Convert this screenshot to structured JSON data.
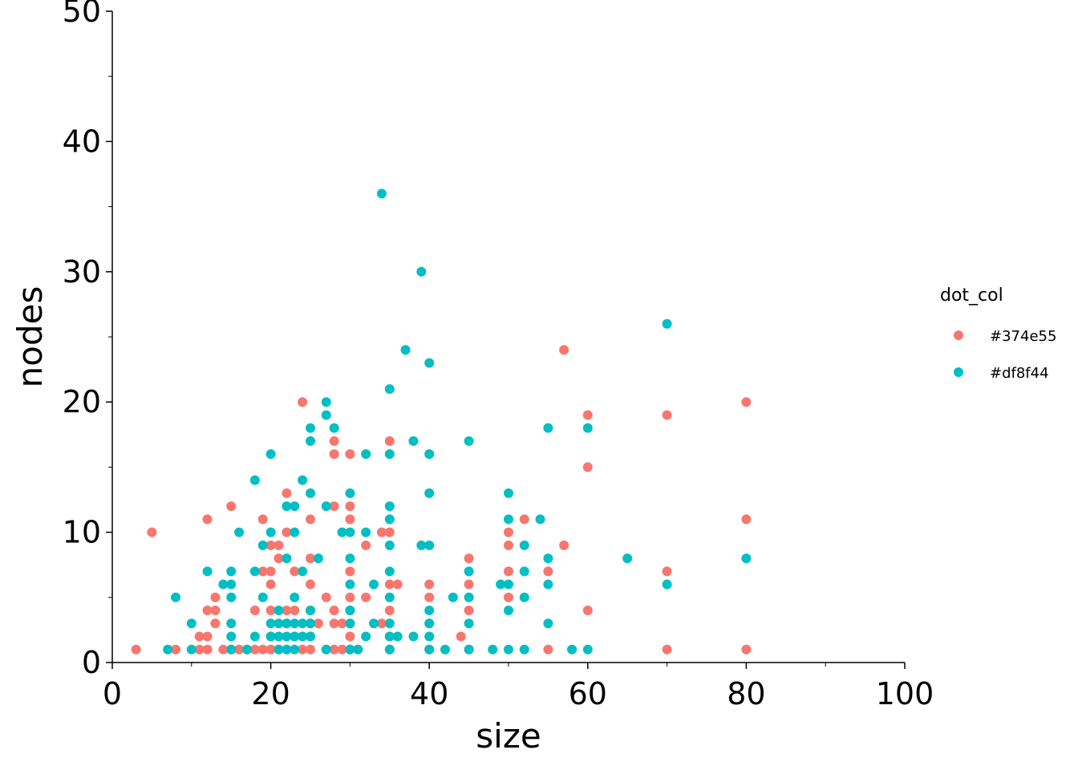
{
  "chart_data": {
    "type": "scatter",
    "xlabel": "size",
    "ylabel": "nodes",
    "xlim": [
      0,
      100
    ],
    "ylim": [
      0,
      50
    ],
    "x_ticks": [
      "0",
      "20",
      "40",
      "60",
      "80",
      "100"
    ],
    "y_ticks": [
      "0",
      "10",
      "20",
      "30",
      "40",
      "50"
    ],
    "grid": false,
    "legend": {
      "title": "dot_col",
      "placement": "right",
      "entries": [
        "#374e55",
        "#df8f44"
      ]
    },
    "series": [
      {
        "name": "#374e55",
        "color": "#f8766d",
        "points": [
          [
            3,
            1
          ],
          [
            5,
            10
          ],
          [
            8,
            1
          ],
          [
            11,
            1
          ],
          [
            11,
            2
          ],
          [
            12,
            1
          ],
          [
            12,
            2
          ],
          [
            12,
            4
          ],
          [
            12,
            11
          ],
          [
            13,
            3
          ],
          [
            13,
            4
          ],
          [
            13,
            5
          ],
          [
            14,
            1
          ],
          [
            15,
            1
          ],
          [
            15,
            12
          ],
          [
            16,
            1
          ],
          [
            17,
            1
          ],
          [
            18,
            1
          ],
          [
            18,
            4
          ],
          [
            19,
            1
          ],
          [
            19,
            7
          ],
          [
            19,
            11
          ],
          [
            20,
            1
          ],
          [
            20,
            2
          ],
          [
            20,
            4
          ],
          [
            20,
            6
          ],
          [
            20,
            7
          ],
          [
            20,
            9
          ],
          [
            21,
            1
          ],
          [
            21,
            8
          ],
          [
            21,
            9
          ],
          [
            22,
            1
          ],
          [
            22,
            3
          ],
          [
            22,
            4
          ],
          [
            22,
            10
          ],
          [
            22,
            13
          ],
          [
            23,
            2
          ],
          [
            23,
            4
          ],
          [
            23,
            7
          ],
          [
            24,
            1
          ],
          [
            24,
            20
          ],
          [
            25,
            1
          ],
          [
            25,
            2
          ],
          [
            25,
            3
          ],
          [
            25,
            4
          ],
          [
            25,
            6
          ],
          [
            25,
            8
          ],
          [
            25,
            11
          ],
          [
            26,
            3
          ],
          [
            27,
            1
          ],
          [
            27,
            5
          ],
          [
            28,
            1
          ],
          [
            28,
            3
          ],
          [
            28,
            4
          ],
          [
            28,
            12
          ],
          [
            28,
            16
          ],
          [
            28,
            17
          ],
          [
            29,
            1
          ],
          [
            29,
            3
          ],
          [
            30,
            1
          ],
          [
            30,
            2
          ],
          [
            30,
            3
          ],
          [
            30,
            4
          ],
          [
            30,
            5
          ],
          [
            30,
            7
          ],
          [
            30,
            11
          ],
          [
            30,
            12
          ],
          [
            30,
            16
          ],
          [
            31,
            1
          ],
          [
            32,
            5
          ],
          [
            32,
            9
          ],
          [
            34,
            3
          ],
          [
            34,
            10
          ],
          [
            35,
            1
          ],
          [
            35,
            2
          ],
          [
            35,
            4
          ],
          [
            35,
            6
          ],
          [
            35,
            10
          ],
          [
            35,
            17
          ],
          [
            36,
            6
          ],
          [
            40,
            1
          ],
          [
            40,
            3
          ],
          [
            40,
            5
          ],
          [
            40,
            6
          ],
          [
            44,
            2
          ],
          [
            45,
            1
          ],
          [
            45,
            4
          ],
          [
            45,
            6
          ],
          [
            45,
            8
          ],
          [
            50,
            5
          ],
          [
            50,
            7
          ],
          [
            50,
            9
          ],
          [
            50,
            10
          ],
          [
            52,
            11
          ],
          [
            55,
            1
          ],
          [
            55,
            7
          ],
          [
            57,
            9
          ],
          [
            57,
            24
          ],
          [
            60,
            4
          ],
          [
            60,
            15
          ],
          [
            60,
            19
          ],
          [
            70,
            1
          ],
          [
            70,
            7
          ],
          [
            70,
            19
          ],
          [
            80,
            1
          ],
          [
            80,
            11
          ],
          [
            80,
            20
          ]
        ]
      },
      {
        "name": "#df8f44",
        "color": "#00bfc4",
        "points": [
          [
            7,
            1
          ],
          [
            8,
            5
          ],
          [
            10,
            1
          ],
          [
            10,
            3
          ],
          [
            12,
            7
          ],
          [
            14,
            6
          ],
          [
            15,
            1
          ],
          [
            15,
            2
          ],
          [
            15,
            3
          ],
          [
            15,
            5
          ],
          [
            15,
            6
          ],
          [
            15,
            7
          ],
          [
            16,
            10
          ],
          [
            17,
            1
          ],
          [
            18,
            2
          ],
          [
            18,
            7
          ],
          [
            18,
            14
          ],
          [
            19,
            5
          ],
          [
            19,
            9
          ],
          [
            20,
            2
          ],
          [
            20,
            3
          ],
          [
            20,
            10
          ],
          [
            20,
            16
          ],
          [
            21,
            1
          ],
          [
            21,
            2
          ],
          [
            21,
            3
          ],
          [
            21,
            4
          ],
          [
            22,
            1
          ],
          [
            22,
            2
          ],
          [
            22,
            3
          ],
          [
            22,
            8
          ],
          [
            22,
            12
          ],
          [
            23,
            1
          ],
          [
            23,
            2
          ],
          [
            23,
            3
          ],
          [
            23,
            5
          ],
          [
            23,
            10
          ],
          [
            23,
            12
          ],
          [
            24,
            2
          ],
          [
            24,
            3
          ],
          [
            24,
            7
          ],
          [
            24,
            14
          ],
          [
            25,
            2
          ],
          [
            25,
            3
          ],
          [
            25,
            4
          ],
          [
            25,
            13
          ],
          [
            25,
            17
          ],
          [
            25,
            18
          ],
          [
            26,
            8
          ],
          [
            27,
            1
          ],
          [
            27,
            12
          ],
          [
            27,
            19
          ],
          [
            27,
            20
          ],
          [
            28,
            18
          ],
          [
            29,
            10
          ],
          [
            30,
            1
          ],
          [
            30,
            3
          ],
          [
            30,
            4
          ],
          [
            30,
            6
          ],
          [
            30,
            8
          ],
          [
            30,
            10
          ],
          [
            30,
            13
          ],
          [
            31,
            1
          ],
          [
            32,
            2
          ],
          [
            32,
            10
          ],
          [
            32,
            16
          ],
          [
            33,
            3
          ],
          [
            33,
            6
          ],
          [
            34,
            36
          ],
          [
            35,
            1
          ],
          [
            35,
            2
          ],
          [
            35,
            3
          ],
          [
            35,
            5
          ],
          [
            35,
            7
          ],
          [
            35,
            9
          ],
          [
            35,
            11
          ],
          [
            35,
            12
          ],
          [
            35,
            16
          ],
          [
            35,
            21
          ],
          [
            36,
            2
          ],
          [
            37,
            24
          ],
          [
            38,
            2
          ],
          [
            38,
            17
          ],
          [
            39,
            9
          ],
          [
            39,
            30
          ],
          [
            40,
            1
          ],
          [
            40,
            2
          ],
          [
            40,
            3
          ],
          [
            40,
            4
          ],
          [
            40,
            9
          ],
          [
            40,
            13
          ],
          [
            40,
            16
          ],
          [
            40,
            23
          ],
          [
            42,
            1
          ],
          [
            43,
            5
          ],
          [
            45,
            1
          ],
          [
            45,
            3
          ],
          [
            45,
            5
          ],
          [
            45,
            7
          ],
          [
            45,
            17
          ],
          [
            48,
            1
          ],
          [
            49,
            6
          ],
          [
            50,
            1
          ],
          [
            50,
            4
          ],
          [
            50,
            6
          ],
          [
            50,
            11
          ],
          [
            50,
            13
          ],
          [
            52,
            1
          ],
          [
            52,
            5
          ],
          [
            52,
            7
          ],
          [
            52,
            9
          ],
          [
            54,
            11
          ],
          [
            55,
            3
          ],
          [
            55,
            6
          ],
          [
            55,
            8
          ],
          [
            55,
            18
          ],
          [
            58,
            1
          ],
          [
            60,
            1
          ],
          [
            60,
            18
          ],
          [
            65,
            8
          ],
          [
            70,
            6
          ],
          [
            70,
            26
          ],
          [
            80,
            8
          ]
        ]
      }
    ]
  }
}
